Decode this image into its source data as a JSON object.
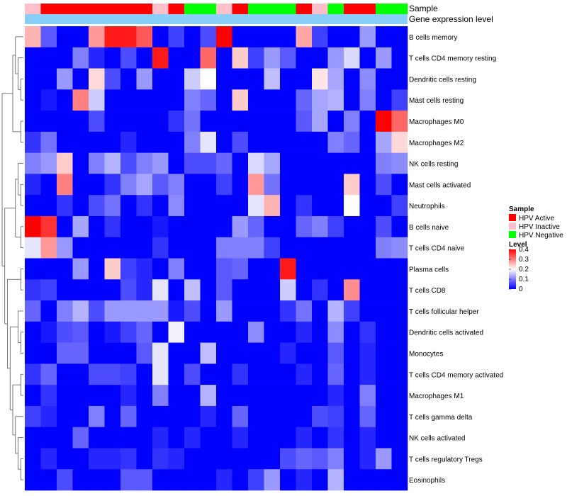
{
  "chart_data": {
    "type": "heatmap",
    "title": "",
    "annotation_labels": [
      "Sample",
      "Gene expression level"
    ],
    "row_labels": [
      "B cells memory",
      "T cells CD4 memory resting",
      "Dendritic cells resting",
      "Mast cells resting",
      "Macrophages M0",
      "Macrophages M2",
      "NK cells resting",
      "Mast cells activated",
      "Neutrophils",
      "B cells naive",
      "T cells CD4 naive",
      "Plasma cells",
      "T cells CD8",
      "T cells follicular helper",
      "Dendritic cells activated",
      "Monocytes",
      "T cells CD4 memory activated",
      "Macrophages M1",
      "T cells gamma delta",
      "NK cells activated",
      "T cells regulatory  Tregs",
      "Eosinophils"
    ],
    "sample_groups": [
      "HPV Inactive",
      "HPV Active",
      "HPV Active",
      "HPV Active",
      "HPV Active",
      "HPV Active",
      "HPV Active",
      "HPV Active",
      "HPV Inactive",
      "HPV Active",
      "HPV Negative",
      "HPV Negative",
      "HPV Inactive",
      "HPV Active",
      "HPV Negative",
      "HPV Negative",
      "HPV Negative",
      "HPV Active",
      "HPV Inactive",
      "HPV Negative",
      "HPV Active",
      "HPV Active",
      "HPV Negative",
      "HPV Negative"
    ],
    "expression_level_bar": "light-blue (uniform)",
    "values": [
      [
        0.26,
        0.07,
        0.0,
        0.0,
        0.28,
        0.38,
        0.38,
        0.33,
        0.0,
        0.05,
        0.0,
        0.06,
        0.4,
        0.0,
        0.0,
        0.0,
        0.0,
        0.27,
        0.05,
        0.0,
        0.0,
        0.12,
        0.0,
        0.0
      ],
      [
        0.0,
        0.0,
        0.0,
        0.1,
        0.03,
        0.0,
        0.06,
        0.0,
        0.38,
        0.0,
        0.0,
        0.32,
        0.0,
        0.24,
        0.05,
        0.12,
        0.07,
        0.0,
        0.0,
        0.12,
        0.17,
        0.0,
        0.12,
        0.0
      ],
      [
        0.0,
        0.0,
        0.12,
        0.0,
        0.23,
        0.06,
        0.0,
        0.12,
        0.0,
        0.0,
        0.16,
        0.2,
        0.0,
        0.0,
        0.0,
        0.15,
        0.0,
        0.0,
        0.22,
        0.13,
        0.0,
        0.11,
        0.0,
        0.0
      ],
      [
        0.0,
        0.02,
        0.0,
        0.3,
        0.16,
        0.0,
        0.0,
        0.0,
        0.0,
        0.0,
        0.1,
        0.08,
        0.0,
        0.24,
        0.0,
        0.0,
        0.0,
        0.08,
        0.13,
        0.14,
        0.0,
        0.1,
        0.0,
        0.05
      ],
      [
        0.0,
        0.0,
        0.0,
        0.0,
        0.06,
        0.0,
        0.0,
        0.0,
        0.0,
        0.04,
        0.09,
        0.0,
        0.0,
        0.0,
        0.0,
        0.0,
        0.0,
        0.07,
        0.13,
        0.0,
        0.1,
        0.0,
        0.4,
        0.32
      ],
      [
        0.04,
        0.09,
        0.0,
        0.0,
        0.0,
        0.0,
        0.03,
        0.0,
        0.0,
        0.0,
        0.1,
        0.18,
        0.0,
        0.06,
        0.0,
        0.0,
        0.0,
        0.0,
        0.0,
        0.1,
        0.08,
        0.0,
        0.13,
        0.23
      ],
      [
        0.1,
        0.12,
        0.24,
        0.0,
        0.1,
        0.14,
        0.06,
        0.1,
        0.12,
        0.0,
        0.06,
        0.06,
        0.08,
        0.0,
        0.17,
        0.13,
        0.0,
        0.0,
        0.0,
        0.0,
        0.0,
        0.0,
        0.1,
        0.11
      ],
      [
        0.03,
        0.0,
        0.3,
        0.0,
        0.0,
        0.04,
        0.1,
        0.13,
        0.07,
        0.1,
        0.0,
        0.0,
        0.05,
        0.0,
        0.28,
        0.09,
        0.0,
        0.0,
        0.0,
        0.0,
        0.24,
        0.0,
        0.06,
        0.0
      ],
      [
        0.0,
        0.0,
        0.04,
        0.0,
        0.06,
        0.09,
        0.0,
        0.04,
        0.0,
        0.11,
        0.0,
        0.0,
        0.0,
        0.0,
        0.18,
        0.26,
        0.0,
        0.04,
        0.0,
        0.0,
        0.2,
        0.0,
        0.0,
        0.05
      ],
      [
        0.4,
        0.36,
        0.0,
        0.13,
        0.0,
        0.04,
        0.0,
        0.0,
        0.02,
        0.0,
        0.0,
        0.0,
        0.0,
        0.12,
        0.08,
        0.0,
        0.0,
        0.08,
        0.1,
        0.05,
        0.0,
        0.0,
        0.06,
        0.0
      ],
      [
        0.18,
        0.28,
        0.12,
        0.0,
        0.0,
        0.0,
        0.0,
        0.0,
        0.04,
        0.0,
        0.0,
        0.0,
        0.1,
        0.1,
        0.1,
        0.05,
        0.0,
        0.0,
        0.0,
        0.0,
        0.0,
        0.0,
        0.1,
        0.11
      ],
      [
        0.0,
        0.0,
        0.0,
        0.12,
        0.0,
        0.24,
        0.05,
        0.03,
        0.0,
        0.1,
        0.0,
        0.0,
        0.07,
        0.08,
        0.0,
        0.0,
        0.38,
        0.0,
        0.0,
        0.0,
        0.0,
        0.0,
        0.0,
        0.0
      ],
      [
        0.04,
        0.05,
        0.0,
        0.0,
        0.0,
        0.0,
        0.06,
        0.03,
        0.18,
        0.0,
        0.15,
        0.0,
        0.07,
        0.0,
        0.0,
        0.0,
        0.16,
        0.0,
        0.04,
        0.0,
        0.29,
        0.0,
        0.0,
        0.0
      ],
      [
        0.08,
        0.0,
        0.1,
        0.14,
        0.06,
        0.12,
        0.12,
        0.12,
        0.12,
        0.02,
        0.06,
        0.0,
        0.12,
        0.0,
        0.0,
        0.0,
        0.04,
        0.09,
        0.0,
        0.14,
        0.05,
        0.0,
        0.0,
        0.0
      ],
      [
        0.0,
        0.02,
        0.06,
        0.07,
        0.0,
        0.02,
        0.05,
        0.08,
        0.0,
        0.19,
        0.0,
        0.0,
        0.0,
        0.0,
        0.11,
        0.0,
        0.0,
        0.03,
        0.0,
        0.11,
        0.0,
        0.04,
        0.0,
        0.0
      ],
      [
        0.0,
        0.0,
        0.08,
        0.08,
        0.0,
        0.0,
        0.0,
        0.07,
        0.18,
        0.0,
        0.0,
        0.15,
        0.0,
        0.0,
        0.0,
        0.0,
        0.03,
        0.0,
        0.0,
        0.07,
        0.0,
        0.03,
        0.0,
        0.0
      ],
      [
        0.04,
        0.08,
        0.0,
        0.0,
        0.06,
        0.06,
        0.05,
        0.0,
        0.18,
        0.0,
        0.06,
        0.0,
        0.0,
        0.04,
        0.0,
        0.0,
        0.0,
        0.03,
        0.0,
        0.08,
        0.0,
        0.03,
        0.0,
        0.0
      ],
      [
        0.0,
        0.04,
        0.0,
        0.0,
        0.0,
        0.0,
        0.03,
        0.0,
        0.1,
        0.0,
        0.0,
        0.14,
        0.0,
        0.0,
        0.0,
        0.0,
        0.0,
        0.0,
        0.0,
        0.03,
        0.0,
        0.1,
        0.0,
        0.0
      ],
      [
        0.05,
        0.03,
        0.0,
        0.0,
        0.1,
        0.0,
        0.08,
        0.0,
        0.0,
        0.0,
        0.0,
        0.03,
        0.0,
        0.08,
        0.0,
        0.0,
        0.0,
        0.0,
        0.06,
        0.05,
        0.0,
        0.08,
        0.0,
        0.0
      ],
      [
        0.0,
        0.0,
        0.0,
        0.08,
        0.0,
        0.0,
        0.0,
        0.0,
        0.03,
        0.0,
        0.03,
        0.0,
        0.0,
        0.03,
        0.0,
        0.0,
        0.0,
        0.03,
        0.0,
        0.04,
        0.0,
        0.03,
        0.0,
        0.0
      ],
      [
        0.0,
        0.03,
        0.0,
        0.0,
        0.03,
        0.03,
        0.04,
        0.0,
        0.04,
        0.03,
        0.0,
        0.0,
        0.0,
        0.0,
        0.0,
        0.0,
        0.06,
        0.08,
        0.07,
        0.1,
        0.0,
        0.03,
        0.12,
        0.0
      ],
      [
        0.0,
        0.0,
        0.06,
        0.0,
        0.0,
        0.0,
        0.07,
        0.07,
        0.0,
        0.0,
        0.0,
        0.0,
        0.03,
        0.0,
        0.05,
        0.12,
        0.0,
        0.03,
        0.0,
        0.14,
        0.0,
        0.0,
        0.0,
        0.0
      ]
    ],
    "legend": {
      "sample_title": "Sample",
      "sample_items": [
        {
          "label": "HPV Active",
          "color": "#ff0000"
        },
        {
          "label": "HPV Inactive",
          "color": "#ffc0cb"
        },
        {
          "label": "HPV Negative",
          "color": "#00ff00"
        }
      ],
      "level_title": "Level",
      "level_ticks": [
        "0.4",
        "0.3",
        "0.2",
        "0.1",
        "0"
      ],
      "level_tick_values": [
        0.4,
        0.3,
        0.2,
        0.1,
        0.0
      ],
      "range": [
        0,
        0.4
      ]
    },
    "colors": {
      "low": "#0000ff",
      "mid": "#ffffff",
      "high": "#ff0000",
      "expression_bar": "#87cefa"
    }
  }
}
